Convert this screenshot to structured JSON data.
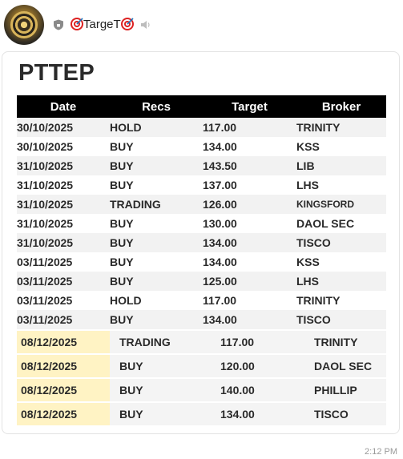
{
  "channel": {
    "name": "TargeT",
    "icons": [
      "avatar",
      "shield-icon",
      "target-emoji-icon",
      "mute-icon"
    ]
  },
  "post": {
    "title": "PTTEP",
    "time": "2:12 PM"
  },
  "table": {
    "headers": [
      "Date",
      "Recs",
      "Target",
      "Broker"
    ],
    "rows": [
      {
        "date": "30/10/2025",
        "rec": "HOLD",
        "target": "117.00",
        "broker": "TRINITY"
      },
      {
        "date": "30/10/2025",
        "rec": "BUY",
        "target": "134.00",
        "broker": "KSS"
      },
      {
        "date": "31/10/2025",
        "rec": "BUY",
        "target": "143.50",
        "broker": "LIB"
      },
      {
        "date": "31/10/2025",
        "rec": "BUY",
        "target": "137.00",
        "broker": "LHS"
      },
      {
        "date": "31/10/2025",
        "rec": "TRADING",
        "target": "126.00",
        "broker": "KINGSFORD"
      },
      {
        "date": "31/10/2025",
        "rec": "BUY",
        "target": "130.00",
        "broker": "DAOL SEC"
      },
      {
        "date": "31/10/2025",
        "rec": "BUY",
        "target": "134.00",
        "broker": "TISCO"
      },
      {
        "date": "03/11/2025",
        "rec": "BUY",
        "target": "134.00",
        "broker": "KSS"
      },
      {
        "date": "03/11/2025",
        "rec": "BUY",
        "target": "125.00",
        "broker": "LHS"
      },
      {
        "date": "03/11/2025",
        "rec": "HOLD",
        "target": "117.00",
        "broker": "TRINITY"
      },
      {
        "date": "03/11/2025",
        "rec": "BUY",
        "target": "134.00",
        "broker": "TISCO"
      },
      {
        "date": "08/12/2025",
        "rec": "TRADING",
        "target": "117.00",
        "broker": "TRINITY"
      },
      {
        "date": "08/12/2025",
        "rec": "BUY",
        "target": "120.00",
        "broker": "DAOL SEC"
      },
      {
        "date": "08/12/2025",
        "rec": "BUY",
        "target": "140.00",
        "broker": "PHILLIP"
      },
      {
        "date": "08/12/2025",
        "rec": "BUY",
        "target": "134.00",
        "broker": "TISCO"
      }
    ]
  },
  "colors": {
    "hold": "#f39a12",
    "buy": "#1fa51f",
    "trading": "#2a78e0",
    "highlight_date": "#fff3c4"
  }
}
